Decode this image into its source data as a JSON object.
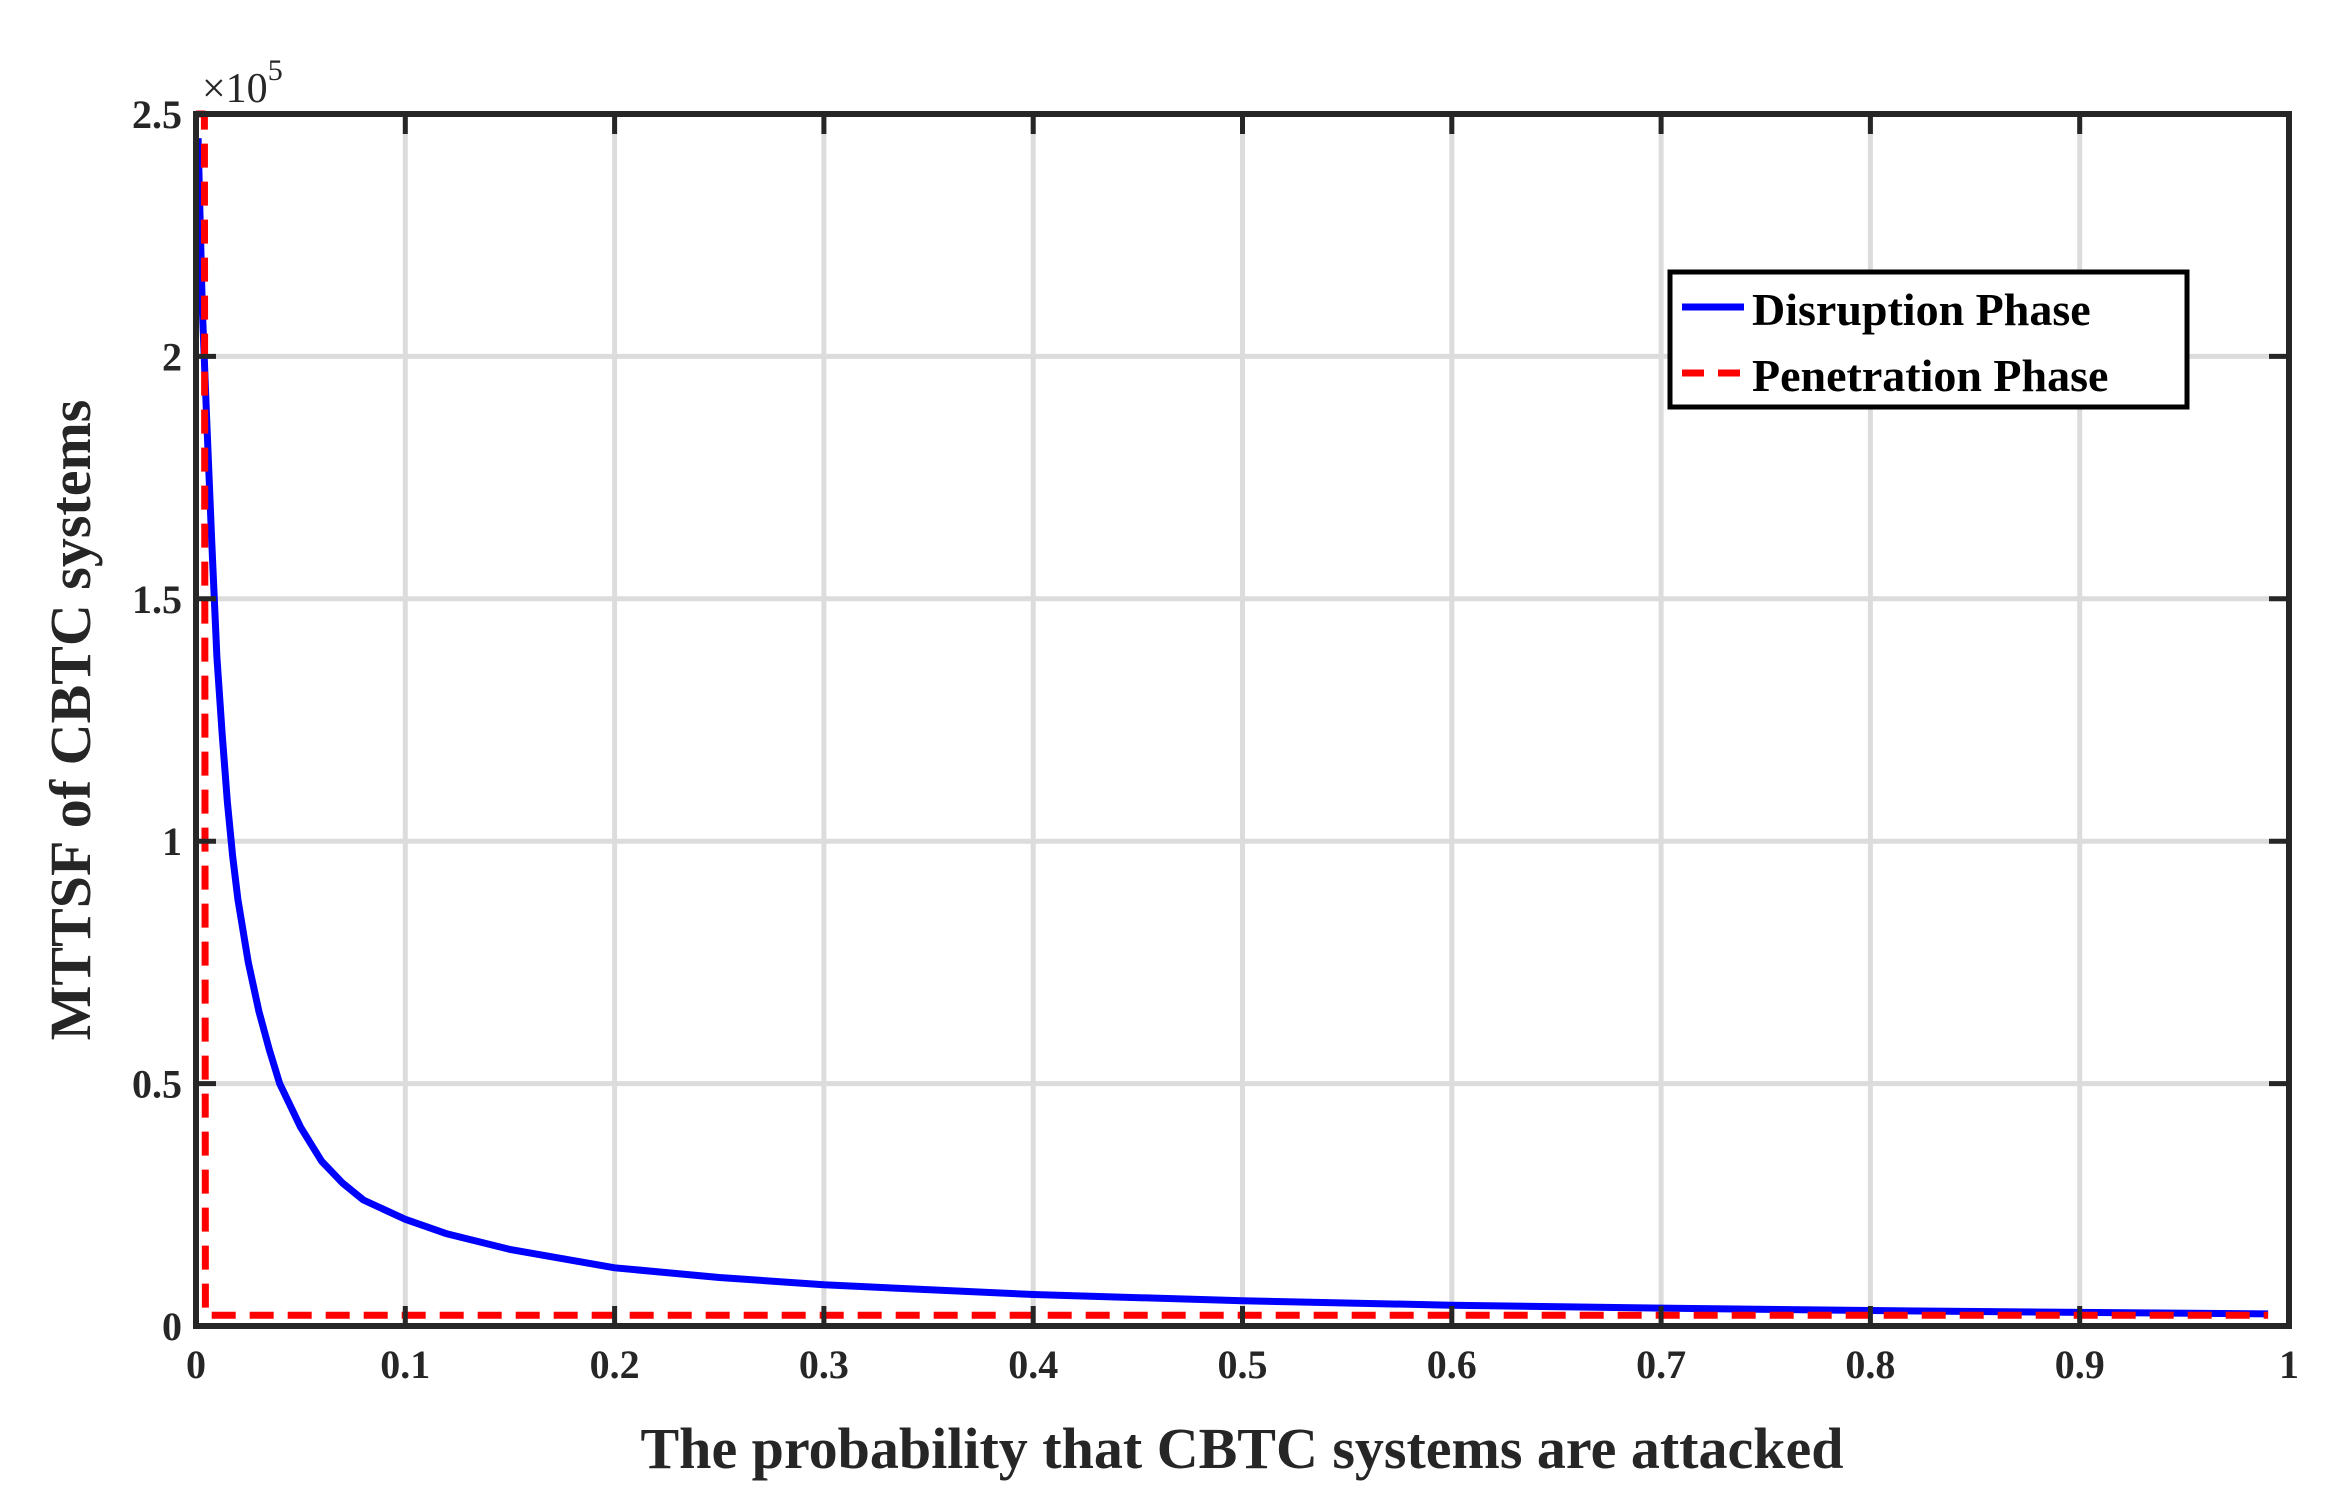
{
  "chart_data": {
    "type": "line",
    "title": "",
    "xlabel": "The probability that CBTC systems are attacked",
    "ylabel": "MTTSF of CBTC systems",
    "xlim": [
      0,
      1
    ],
    "ylim": [
      0,
      2.5
    ],
    "y_multiplier_base": "×10",
    "y_multiplier_exp": "5",
    "x_ticks": [
      0,
      0.1,
      0.2,
      0.3,
      0.4,
      0.5,
      0.6,
      0.7,
      0.8,
      0.9,
      1
    ],
    "x_tick_labels": [
      "0",
      "0.1",
      "0.2",
      "0.3",
      "0.4",
      "0.5",
      "0.6",
      "0.7",
      "0.8",
      "0.9",
      "1"
    ],
    "y_ticks": [
      0,
      0.5,
      1,
      1.5,
      2,
      2.5
    ],
    "y_tick_labels": [
      "0",
      "0.5",
      "1",
      "1.5",
      "2",
      "2.5"
    ],
    "grid": true,
    "legend_position": "top-right",
    "series": [
      {
        "name": "Disruption Phase",
        "color": "#0000ff",
        "style": "solid",
        "x": [
          0.001,
          0.003,
          0.005,
          0.0075,
          0.01,
          0.0125,
          0.015,
          0.0175,
          0.02,
          0.025,
          0.03,
          0.035,
          0.04,
          0.05,
          0.06,
          0.07,
          0.08,
          0.1,
          0.12,
          0.15,
          0.2,
          0.25,
          0.3,
          0.4,
          0.5,
          0.6,
          0.7,
          0.8,
          0.9,
          0.99
        ],
        "y": [
          2.45,
          2.1,
          1.88,
          1.62,
          1.38,
          1.22,
          1.08,
          0.97,
          0.88,
          0.75,
          0.65,
          0.57,
          0.5,
          0.41,
          0.34,
          0.295,
          0.26,
          0.22,
          0.19,
          0.158,
          0.12,
          0.1,
          0.085,
          0.065,
          0.052,
          0.043,
          0.037,
          0.032,
          0.028,
          0.025
        ]
      },
      {
        "name": "Penetration Phase",
        "color": "#ff0000",
        "style": "dashed",
        "x": [
          0.0,
          0.004,
          0.0045,
          0.99
        ],
        "y": [
          2.5,
          2.5,
          0.022,
          0.022
        ]
      }
    ]
  }
}
